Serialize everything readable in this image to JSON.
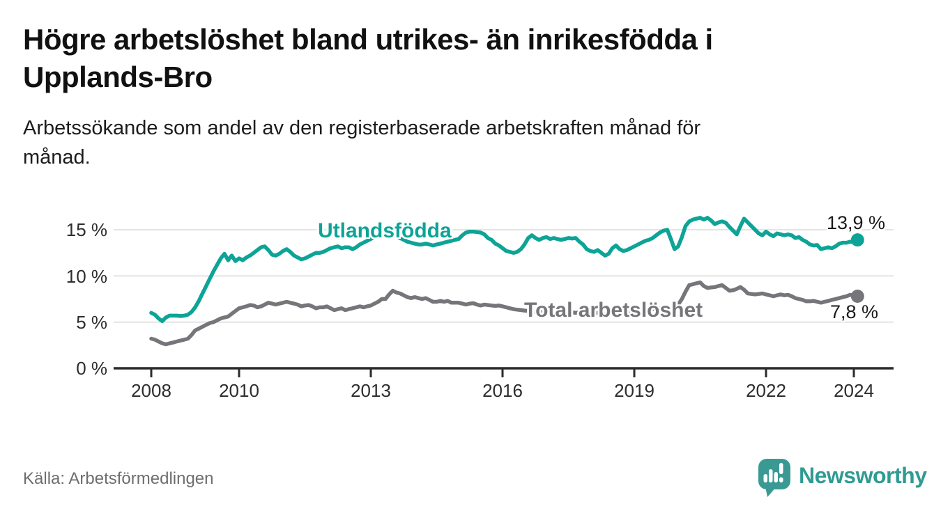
{
  "header": {
    "title_lines": [
      "Högre arbetslöshet bland utrikes- än inrikesfödda i",
      "Upplands-Bro"
    ],
    "title": "Högre arbetslöshet bland utrikes- än inrikesfödda i Upplands-Bro",
    "subtitle_lines": [
      "Arbetssökande som andel av den registerbaserade arbetskraften månad för",
      "månad."
    ],
    "subtitle": "Arbetssökande som andel av den registerbaserade arbetskraften månad för månad."
  },
  "footer": {
    "source": "Källa: Arbetsförmedlingen",
    "logo_text": "Newsworthy",
    "logo_icon": "speech-bubble-bar-chart-icon"
  },
  "colors": {
    "foreign_line": "#0da497",
    "total_line": "#76767a",
    "gridline": "#dcdcdc",
    "axis": "#2b2b2b",
    "title_text": "#111111",
    "source_text": "#6e6e71",
    "logo_teal": "#2f9b93"
  },
  "chart_data": {
    "type": "line",
    "title": "Högre arbetslöshet bland utrikes- än inrikesfödda i Upplands-Bro",
    "subtitle": "Arbetssökande som andel av den registerbaserade arbetskraften månad för månad.",
    "unit": "%",
    "frequency": "monthly",
    "x_start": "2008-01",
    "x_end": "2024-02",
    "ylim": [
      0,
      17
    ],
    "y_gridlines": [
      5,
      10,
      15
    ],
    "y_tick_labels": [
      "15 %",
      "10 %",
      "5 %",
      "0 %"
    ],
    "x_ticks": [
      2008,
      2010,
      2013,
      2016,
      2019,
      2022,
      2024
    ],
    "x_tick_labels": [
      "2008",
      "2010",
      "2013",
      "2016",
      "2019",
      "2022",
      "2024"
    ],
    "legend_position": "inline-labels",
    "grid": "horizontal-only",
    "series": [
      {
        "id": "utlandsfodda",
        "name": "Utlandsfödda",
        "color": "#0da497",
        "end_label": "13,9 %",
        "end_value": 13.9,
        "values": [
          6.0,
          5.8,
          5.4,
          5.1,
          5.5,
          5.7,
          5.7,
          5.7,
          5.65,
          5.7,
          5.8,
          6.1,
          6.6,
          7.3,
          8.1,
          8.9,
          9.7,
          10.5,
          11.2,
          11.9,
          12.4,
          11.7,
          12.2,
          11.6,
          11.9,
          11.7,
          12.0,
          12.2,
          12.5,
          12.8,
          13.1,
          13.2,
          12.8,
          12.3,
          12.2,
          12.4,
          12.7,
          12.9,
          12.6,
          12.2,
          12.0,
          11.8,
          11.9,
          12.1,
          12.3,
          12.5,
          12.5,
          12.6,
          12.8,
          13.0,
          13.1,
          13.2,
          13.0,
          13.1,
          13.1,
          12.9,
          13.1,
          13.4,
          13.6,
          13.8,
          14.0,
          14.3,
          14.5,
          14.7,
          14.7,
          14.6,
          14.5,
          14.3,
          14.1,
          13.9,
          13.7,
          13.6,
          13.5,
          13.4,
          13.4,
          13.5,
          13.4,
          13.3,
          13.4,
          13.5,
          13.6,
          13.7,
          13.8,
          13.9,
          14.0,
          14.4,
          14.7,
          14.8,
          14.8,
          14.75,
          14.7,
          14.5,
          14.1,
          13.9,
          13.5,
          13.3,
          13.0,
          12.7,
          12.6,
          12.5,
          12.6,
          12.9,
          13.4,
          14.1,
          14.4,
          14.1,
          13.9,
          14.1,
          14.2,
          14.0,
          14.1,
          14.0,
          13.9,
          14.0,
          14.1,
          14.05,
          14.1,
          13.7,
          13.4,
          12.9,
          12.7,
          12.6,
          12.8,
          12.5,
          12.2,
          12.4,
          13.0,
          13.3,
          12.9,
          12.7,
          12.8,
          13.0,
          13.2,
          13.4,
          13.6,
          13.8,
          13.9,
          14.1,
          14.4,
          14.7,
          14.9,
          15.0,
          14.0,
          12.9,
          13.2,
          14.2,
          15.4,
          15.9,
          16.1,
          16.2,
          16.3,
          16.1,
          16.3,
          16.0,
          15.6,
          15.8,
          15.9,
          15.75,
          15.3,
          14.9,
          14.5,
          15.4,
          16.2,
          15.8,
          15.4,
          15.0,
          14.6,
          14.4,
          14.8,
          14.5,
          14.3,
          14.6,
          14.5,
          14.4,
          14.5,
          14.4,
          14.1,
          14.2,
          13.9,
          13.7,
          13.4,
          13.3,
          13.35,
          12.9,
          13.0,
          13.1,
          13.0,
          13.2,
          13.5,
          13.6,
          13.6,
          13.7,
          13.7,
          13.9
        ]
      },
      {
        "id": "total",
        "name": "Total arbetslöshet",
        "color": "#76767a",
        "end_label": "7,8 %",
        "end_value": 7.8,
        "values": [
          3.2,
          3.1,
          2.9,
          2.7,
          2.6,
          2.7,
          2.8,
          2.9,
          3.0,
          3.1,
          3.2,
          3.6,
          4.1,
          4.3,
          4.5,
          4.7,
          4.9,
          5.0,
          5.2,
          5.4,
          5.5,
          5.6,
          5.9,
          6.2,
          6.5,
          6.6,
          6.7,
          6.85,
          6.8,
          6.6,
          6.7,
          6.9,
          7.1,
          7.0,
          6.9,
          7.0,
          7.1,
          7.2,
          7.1,
          7.0,
          6.9,
          6.7,
          6.8,
          6.85,
          6.7,
          6.5,
          6.6,
          6.6,
          6.7,
          6.5,
          6.3,
          6.4,
          6.5,
          6.3,
          6.4,
          6.5,
          6.6,
          6.7,
          6.6,
          6.7,
          6.8,
          7.0,
          7.2,
          7.5,
          7.5,
          8.0,
          8.4,
          8.2,
          8.1,
          7.9,
          7.7,
          7.6,
          7.7,
          7.6,
          7.5,
          7.6,
          7.4,
          7.2,
          7.2,
          7.3,
          7.2,
          7.3,
          7.1,
          7.1,
          7.1,
          7.0,
          6.9,
          7.0,
          7.05,
          6.9,
          6.8,
          6.9,
          6.85,
          6.8,
          6.75,
          6.8,
          6.7,
          6.6,
          6.5,
          6.4,
          6.35,
          6.3,
          6.25,
          6.2,
          6.15,
          6.1,
          6.1,
          6.15,
          6.1,
          6.05,
          6.0,
          6.05,
          6.0,
          5.95,
          6.0,
          6.05,
          6.0,
          6.05,
          6.1,
          6.1,
          6.0,
          5.95,
          6.0,
          5.9,
          5.85,
          5.9,
          5.95,
          6.0,
          6.1,
          6.05,
          6.1,
          6.15,
          6.2,
          6.25,
          6.3,
          6.3,
          6.35,
          6.4,
          6.45,
          6.5,
          6.5,
          6.45,
          6.5,
          6.6,
          6.9,
          7.5,
          8.3,
          9.0,
          9.1,
          9.2,
          9.3,
          8.9,
          8.7,
          8.75,
          8.8,
          8.9,
          9.0,
          8.7,
          8.4,
          8.45,
          8.6,
          8.8,
          8.5,
          8.1,
          8.05,
          8.0,
          8.05,
          8.1,
          8.0,
          7.9,
          7.8,
          7.9,
          8.0,
          7.9,
          7.95,
          7.8,
          7.6,
          7.5,
          7.4,
          7.25,
          7.25,
          7.3,
          7.2,
          7.1,
          7.2,
          7.3,
          7.4,
          7.5,
          7.6,
          7.7,
          7.8,
          7.95,
          7.9,
          7.8
        ]
      }
    ]
  }
}
